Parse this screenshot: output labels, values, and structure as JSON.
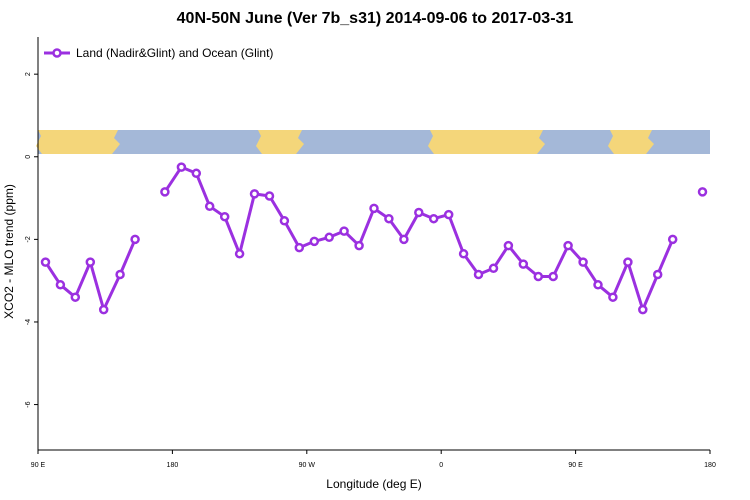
{
  "chart_data": {
    "type": "line",
    "title": "40N-50N June (Ver 7b_s31)   2014-09-06 to 2017-03-31",
    "xlabel": "Longitude (deg E)",
    "ylabel": "XCO2 - MLO trend (ppm)",
    "x_ticks": [
      {
        "label": "90 E",
        "value": 90
      },
      {
        "label": "180",
        "value": 180
      },
      {
        "label": "90 W",
        "value": 270
      },
      {
        "label": "0",
        "value": 360
      },
      {
        "label": "90 E",
        "value": 450
      },
      {
        "label": "180",
        "value": 540
      }
    ],
    "y_ticks": [
      2,
      0,
      -2,
      -4,
      -6
    ],
    "xlim": [
      90,
      540
    ],
    "ylim": [
      -7.1,
      2.9
    ],
    "grid": false,
    "legend_position": "top-left",
    "color": "#9b30e0",
    "series": [
      {
        "name": "Land (Nadir&Glint) and Ocean (Glint)",
        "segments": [
          [
            [
              95,
              -2.55
            ],
            [
              105,
              -3.1
            ],
            [
              115,
              -3.4
            ],
            [
              125,
              -2.55
            ],
            [
              134,
              -3.7
            ],
            [
              145,
              -2.85
            ],
            [
              155,
              -2.0
            ]
          ],
          [
            [
              175,
              -0.85
            ],
            [
              186,
              -0.25
            ],
            [
              196,
              -0.4
            ],
            [
              205,
              -1.2
            ],
            [
              215,
              -1.45
            ],
            [
              225,
              -2.35
            ],
            [
              235,
              -0.9
            ],
            [
              245,
              -0.95
            ],
            [
              255,
              -1.55
            ],
            [
              265,
              -2.2
            ],
            [
              275,
              -2.05
            ],
            [
              285,
              -1.95
            ],
            [
              295,
              -1.8
            ],
            [
              305,
              -2.15
            ],
            [
              315,
              -1.25
            ],
            [
              325,
              -1.5
            ],
            [
              335,
              -2.0
            ],
            [
              345,
              -1.35
            ],
            [
              355,
              -1.5
            ],
            [
              365,
              -1.4
            ],
            [
              375,
              -2.35
            ],
            [
              385,
              -2.85
            ],
            [
              395,
              -2.7
            ],
            [
              405,
              -2.15
            ],
            [
              415,
              -2.6
            ],
            [
              425,
              -2.9
            ],
            [
              435,
              -2.9
            ],
            [
              445,
              -2.15
            ],
            [
              455,
              -2.55
            ],
            [
              465,
              -3.1
            ],
            [
              475,
              -3.4
            ],
            [
              485,
              -2.55
            ],
            [
              495,
              -3.7
            ],
            [
              505,
              -2.85
            ],
            [
              515,
              -2.0
            ]
          ],
          [
            [
              535,
              -0.85
            ]
          ]
        ]
      }
    ],
    "map_strip": {
      "ocean_color": "#a4b8d8",
      "land_color": "#f4d67a"
    }
  }
}
